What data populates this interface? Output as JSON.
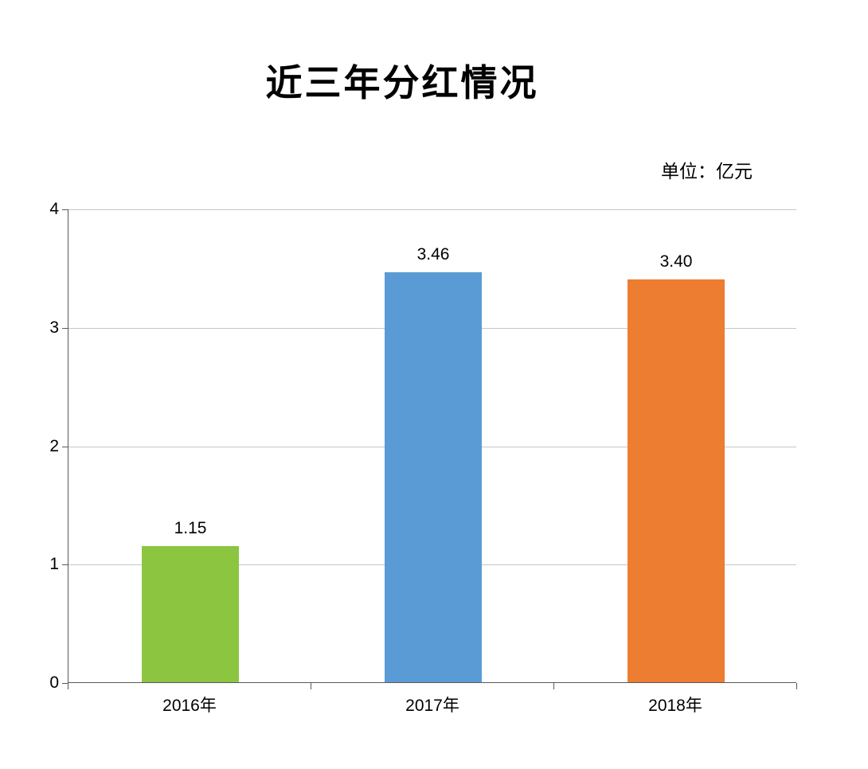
{
  "chart_data": {
    "type": "bar",
    "title": "近三年分红情况",
    "unit_label": "单位：亿元",
    "categories": [
      "2016年",
      "2017年",
      "2018年"
    ],
    "values": [
      1.15,
      3.46,
      3.4
    ],
    "value_labels": [
      "1.15",
      "3.46",
      "3.40"
    ],
    "bar_colors": [
      "#8cc540",
      "#5b9bd5",
      "#ed7d31"
    ],
    "ylim": [
      0,
      4
    ],
    "yticks": [
      0,
      1,
      2,
      3,
      4
    ],
    "grid": true,
    "legend": "none",
    "gridline_color": "#c6c6c6",
    "axis_color": "#595959",
    "background_color": "#ffffff"
  }
}
